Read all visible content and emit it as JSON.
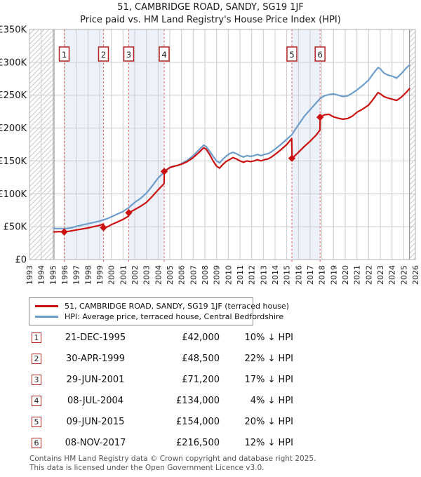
{
  "title": "51, CAMBRIDGE ROAD, SANDY, SG19 1JF",
  "subtitle": "Price paid vs. HM Land Registry's House Price Index (HPI)",
  "chart_data": {
    "type": "line",
    "title": "51, CAMBRIDGE ROAD, SANDY, SG19 1JF",
    "subtitle": "Price paid vs. HM Land Registry's House Price Index (HPI)",
    "grid": true,
    "x_axis": {
      "min_year": 1993,
      "max_year": 2026,
      "tick_labels": [
        "1993",
        "1994",
        "1995",
        "1996",
        "1997",
        "1998",
        "1999",
        "2000",
        "2001",
        "2002",
        "2003",
        "2004",
        "2005",
        "2006",
        "2007",
        "2008",
        "2009",
        "2010",
        "2011",
        "2012",
        "2013",
        "2014",
        "2015",
        "2016",
        "2017",
        "2018",
        "2019",
        "2020",
        "2021",
        "2022",
        "2023",
        "2024",
        "2025",
        "2026"
      ]
    },
    "y_axis": {
      "min": 0,
      "max": 350000,
      "tick_step": 50000,
      "tick_labels": [
        "£0",
        "£50K",
        "£100K",
        "£150K",
        "£200K",
        "£250K",
        "£300K",
        "£350K"
      ]
    },
    "data_start_year": 1995.1,
    "data_end_year": 2025.5,
    "shaded_periods": [
      [
        1995.97,
        1999.33
      ],
      [
        2001.49,
        2004.52
      ],
      [
        2015.44,
        2017.85
      ]
    ],
    "series": [
      {
        "name": "51, CAMBRIDGE ROAD, SANDY, SG19 1JF (terraced house)",
        "color": "#cc1111",
        "points_year_gbpk": [
          [
            1995.1,
            42
          ],
          [
            1995.5,
            42.5
          ],
          [
            1995.97,
            42
          ],
          [
            1996.4,
            43
          ],
          [
            1997,
            45
          ],
          [
            1997.5,
            46.5
          ],
          [
            1998,
            48
          ],
          [
            1998.5,
            50
          ],
          [
            1999,
            52
          ],
          [
            1999.32,
            54
          ],
          [
            1999.34,
            48.5
          ],
          [
            1999.7,
            50
          ],
          [
            2000,
            53
          ],
          [
            2000.5,
            57
          ],
          [
            2001,
            61
          ],
          [
            2001.48,
            66
          ],
          [
            2001.5,
            71.2
          ],
          [
            2002,
            76
          ],
          [
            2002.5,
            81
          ],
          [
            2003,
            87
          ],
          [
            2003.5,
            96
          ],
          [
            2004,
            106
          ],
          [
            2004.51,
            115.5
          ],
          [
            2004.53,
            134
          ],
          [
            2005,
            140
          ],
          [
            2005.4,
            142
          ],
          [
            2006,
            145
          ],
          [
            2006.5,
            149
          ],
          [
            2007,
            155
          ],
          [
            2007.5,
            163
          ],
          [
            2007.9,
            170
          ],
          [
            2008.1,
            168
          ],
          [
            2008.4,
            160
          ],
          [
            2008.7,
            150
          ],
          [
            2009,
            142
          ],
          [
            2009.25,
            139
          ],
          [
            2009.5,
            144
          ],
          [
            2009.8,
            149
          ],
          [
            2010.1,
            152
          ],
          [
            2010.4,
            155
          ],
          [
            2010.7,
            153
          ],
          [
            2011,
            150
          ],
          [
            2011.3,
            148
          ],
          [
            2011.6,
            150
          ],
          [
            2011.9,
            149
          ],
          [
            2012.2,
            150
          ],
          [
            2012.5,
            152
          ],
          [
            2012.8,
            150
          ],
          [
            2013.1,
            152
          ],
          [
            2013.4,
            153
          ],
          [
            2013.7,
            156
          ],
          [
            2014,
            160
          ],
          [
            2014.5,
            167
          ],
          [
            2015,
            175
          ],
          [
            2015.42,
            184
          ],
          [
            2015.46,
            154
          ],
          [
            2016,
            163
          ],
          [
            2016.5,
            172
          ],
          [
            2017,
            180
          ],
          [
            2017.5,
            189
          ],
          [
            2017.84,
            197
          ],
          [
            2017.86,
            216.5
          ],
          [
            2018.2,
            220
          ],
          [
            2018.6,
            221
          ],
          [
            2019,
            217
          ],
          [
            2019.4,
            215
          ],
          [
            2019.8,
            213.5
          ],
          [
            2020.2,
            214.5
          ],
          [
            2020.6,
            218
          ],
          [
            2021,
            224
          ],
          [
            2021.5,
            229
          ],
          [
            2022,
            235
          ],
          [
            2022.4,
            244
          ],
          [
            2022.8,
            254
          ],
          [
            2023,
            252
          ],
          [
            2023.3,
            248
          ],
          [
            2023.6,
            246
          ],
          [
            2024,
            244
          ],
          [
            2024.4,
            242
          ],
          [
            2024.8,
            247
          ],
          [
            2025.2,
            254
          ],
          [
            2025.5,
            260
          ]
        ]
      },
      {
        "name": "HPI: Average price, terraced house, Central Bedfordshire",
        "color": "#6e9dcb",
        "points_year_gbpk": [
          [
            1995.1,
            47.5
          ],
          [
            1995.4,
            47
          ],
          [
            1995.7,
            47.3
          ],
          [
            1995.97,
            46.8
          ],
          [
            1996.3,
            47.5
          ],
          [
            1996.6,
            48.3
          ],
          [
            1997,
            50.5
          ],
          [
            1997.5,
            52.5
          ],
          [
            1998,
            54.5
          ],
          [
            1998.5,
            56.5
          ],
          [
            1999,
            58.5
          ],
          [
            1999.33,
            60.5
          ],
          [
            1999.7,
            62.5
          ],
          [
            2000,
            65
          ],
          [
            2000.5,
            69
          ],
          [
            2001,
            73
          ],
          [
            2001.49,
            79
          ],
          [
            2002,
            87
          ],
          [
            2002.5,
            93
          ],
          [
            2003,
            101
          ],
          [
            2003.5,
            112
          ],
          [
            2004,
            124
          ],
          [
            2004.52,
            133
          ],
          [
            2005,
            140
          ],
          [
            2005.3,
            142
          ],
          [
            2005.7,
            143
          ],
          [
            2006,
            146
          ],
          [
            2006.5,
            151
          ],
          [
            2007,
            158
          ],
          [
            2007.5,
            167
          ],
          [
            2007.9,
            174
          ],
          [
            2008.1,
            172
          ],
          [
            2008.4,
            165
          ],
          [
            2008.7,
            157
          ],
          [
            2009,
            150
          ],
          [
            2009.25,
            147
          ],
          [
            2009.5,
            152
          ],
          [
            2009.8,
            157
          ],
          [
            2010.1,
            161
          ],
          [
            2010.4,
            163
          ],
          [
            2010.7,
            161
          ],
          [
            2011,
            158
          ],
          [
            2011.3,
            156
          ],
          [
            2011.6,
            158
          ],
          [
            2011.9,
            157
          ],
          [
            2012.2,
            158
          ],
          [
            2012.5,
            160
          ],
          [
            2012.8,
            158
          ],
          [
            2013.1,
            160
          ],
          [
            2013.4,
            161
          ],
          [
            2013.7,
            164
          ],
          [
            2014,
            168
          ],
          [
            2014.5,
            175
          ],
          [
            2015,
            183
          ],
          [
            2015.44,
            190
          ],
          [
            2016,
            205
          ],
          [
            2016.5,
            218
          ],
          [
            2017,
            228
          ],
          [
            2017.5,
            238
          ],
          [
            2017.85,
            245
          ],
          [
            2018.2,
            249
          ],
          [
            2018.6,
            251
          ],
          [
            2019,
            252
          ],
          [
            2019.4,
            250
          ],
          [
            2019.8,
            248
          ],
          [
            2020.2,
            249
          ],
          [
            2020.6,
            253
          ],
          [
            2021,
            258
          ],
          [
            2021.5,
            265
          ],
          [
            2022,
            273
          ],
          [
            2022.4,
            283
          ],
          [
            2022.8,
            292
          ],
          [
            2023,
            290
          ],
          [
            2023.3,
            284
          ],
          [
            2023.6,
            281
          ],
          [
            2024,
            279
          ],
          [
            2024.4,
            276
          ],
          [
            2024.8,
            283
          ],
          [
            2025.2,
            291
          ],
          [
            2025.5,
            296
          ]
        ]
      }
    ]
  },
  "legend": {
    "entries": [
      {
        "label": "51, CAMBRIDGE ROAD, SANDY, SG19 1JF (terraced house)",
        "color": "#cc1111"
      },
      {
        "label": "HPI: Average price, terraced house, Central Bedfordshire",
        "color": "#6e9dcb"
      }
    ]
  },
  "transactions": [
    {
      "num": "1",
      "date": "21-DEC-1995",
      "price": "£42,000",
      "vs_hpi": "10% ↓ HPI",
      "year": 1995.97,
      "price_k": 42
    },
    {
      "num": "2",
      "date": "30-APR-1999",
      "price": "£48,500",
      "vs_hpi": "22% ↓ HPI",
      "year": 1999.33,
      "price_k": 48.5
    },
    {
      "num": "3",
      "date": "29-JUN-2001",
      "price": "£71,200",
      "vs_hpi": "17% ↓ HPI",
      "year": 2001.49,
      "price_k": 71.2
    },
    {
      "num": "4",
      "date": "08-JUL-2004",
      "price": "£134,000",
      "vs_hpi": "4% ↓ HPI",
      "year": 2004.52,
      "price_k": 134
    },
    {
      "num": "5",
      "date": "09-JUN-2015",
      "price": "£154,000",
      "vs_hpi": "20% ↓ HPI",
      "year": 2015.44,
      "price_k": 154
    },
    {
      "num": "6",
      "date": "08-NOV-2017",
      "price": "£216,500",
      "vs_hpi": "12% ↓ HPI",
      "year": 2017.85,
      "price_k": 216.5
    }
  ],
  "footer": {
    "line1": "Contains HM Land Registry data © Crown copyright and database right 2025.",
    "line2": "This data is licensed under the Open Government Licence v3.0."
  },
  "colors": {
    "red_line": "#cc1111",
    "blue_line": "#6e9dcb",
    "dashed_marker": "#e06c6c",
    "band_fill": "#edf1fa",
    "grid": "#cccccc",
    "plot_border": "#b0b0b0",
    "hatch": "#c8c8c8",
    "data_boundary": "#808080",
    "badge_border": "#b22222",
    "axis_text": "#1a1a1a",
    "footer_text": "#555555"
  }
}
